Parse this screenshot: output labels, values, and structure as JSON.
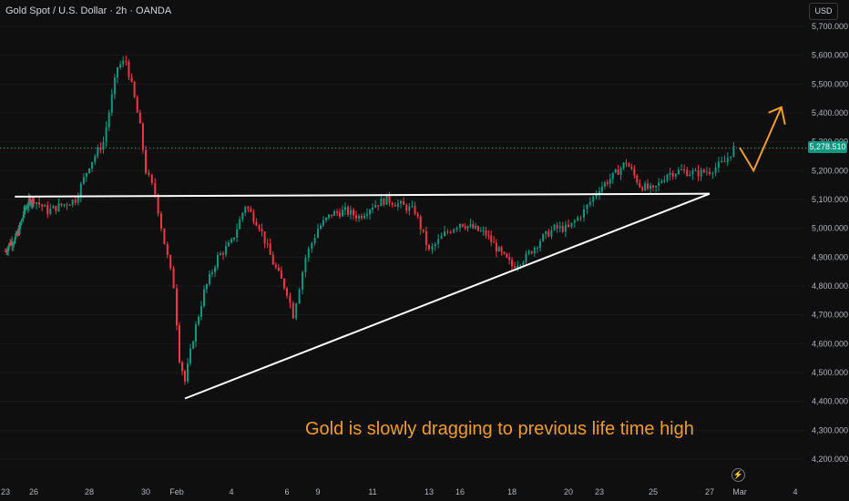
{
  "header": {
    "title": "Gold Spot / U.S. Dollar · 2h · OANDA"
  },
  "price_axis": {
    "currency": "USD",
    "last_price": "5,278.510"
  },
  "annotation": {
    "text": "Gold is slowly dragging to previous life time high"
  },
  "colors": {
    "up": "#089981",
    "down": "#f23645",
    "lines": "#ffffff",
    "arrow": "#f39c29",
    "background": "#0f0f0f"
  },
  "icons": {
    "replay": "lightning-icon"
  },
  "chart_data": {
    "type": "candlestick",
    "title": "Gold Spot / U.S. Dollar · 2h · OANDA",
    "ylim": [
      4150,
      5780
    ],
    "yticks": [
      {
        "value": 5700,
        "label": "5,700.000"
      },
      {
        "value": 5600,
        "label": "5,600.000"
      },
      {
        "value": 5500,
        "label": "5,500.000"
      },
      {
        "value": 5400,
        "label": "5,400.000"
      },
      {
        "value": 5300,
        "label": "5,300.000"
      },
      {
        "value": 5200,
        "label": "5,200.000"
      },
      {
        "value": 5100,
        "label": "5,100.000"
      },
      {
        "value": 5000,
        "label": "5,000.000"
      },
      {
        "value": 4900,
        "label": "4,900.000"
      },
      {
        "value": 4800,
        "label": "4,800.000"
      },
      {
        "value": 4700,
        "label": "4,700.000"
      },
      {
        "value": 4600,
        "label": "4,600.000"
      },
      {
        "value": 4500,
        "label": "4,500.000"
      },
      {
        "value": 4400,
        "label": "4,400.000"
      },
      {
        "value": 4300,
        "label": "4,300.000"
      },
      {
        "value": 4200,
        "label": "4,200.000"
      }
    ],
    "xticks": [
      {
        "pos": 0,
        "label": "23"
      },
      {
        "pos": 3,
        "label": "26"
      },
      {
        "pos": 5,
        "label": "28"
      },
      {
        "pos": 7,
        "label": "30"
      },
      {
        "pos": 8,
        "label": "Feb"
      },
      {
        "pos": 10,
        "label": "4"
      },
      {
        "pos": 12,
        "label": "6"
      },
      {
        "pos": 13,
        "label": "9"
      },
      {
        "pos": 15,
        "label": "11"
      },
      {
        "pos": 17,
        "label": "13"
      },
      {
        "pos": 18,
        "label": "16"
      },
      {
        "pos": 20,
        "label": "18"
      },
      {
        "pos": 22,
        "label": "20"
      },
      {
        "pos": 23,
        "label": "23"
      },
      {
        "pos": 25,
        "label": "25"
      },
      {
        "pos": 27,
        "label": "27"
      },
      {
        "pos": 28,
        "label": "Mar"
      },
      {
        "pos": 30,
        "label": "4"
      }
    ],
    "path": [
      [
        0,
        4920
      ],
      [
        0.5,
        4950
      ],
      [
        1,
        4960
      ],
      [
        1.5,
        5000
      ],
      [
        2,
        5060
      ],
      [
        2.5,
        5090
      ],
      [
        3,
        5100
      ],
      [
        3.5,
        5060
      ],
      [
        4,
        5080
      ],
      [
        4.5,
        5100
      ],
      [
        5,
        5220
      ],
      [
        5.5,
        5300
      ],
      [
        6,
        5560
      ],
      [
        6.3,
        5580
      ],
      [
        6.6,
        5450
      ],
      [
        6.8,
        5350
      ],
      [
        7,
        5200
      ],
      [
        7.3,
        5120
      ],
      [
        7.6,
        4950
      ],
      [
        7.9,
        4800
      ],
      [
        8.1,
        4550
      ],
      [
        8.3,
        4470
      ],
      [
        8.6,
        4620
      ],
      [
        9,
        4780
      ],
      [
        9.5,
        4900
      ],
      [
        10,
        4950
      ],
      [
        10.5,
        5080
      ],
      [
        11,
        5010
      ],
      [
        11.5,
        4880
      ],
      [
        12,
        4780
      ],
      [
        12.2,
        4700
      ],
      [
        12.6,
        4900
      ],
      [
        13,
        5000
      ],
      [
        13.5,
        5050
      ],
      [
        14,
        5060
      ],
      [
        14.5,
        5040
      ],
      [
        15,
        5080
      ],
      [
        15.5,
        5100
      ],
      [
        16,
        5080
      ],
      [
        16.5,
        5060
      ],
      [
        17,
        4920
      ],
      [
        17.5,
        4980
      ],
      [
        18,
        5020
      ],
      [
        18.5,
        5000
      ],
      [
        19,
        4980
      ],
      [
        19.5,
        4920
      ],
      [
        20,
        4870
      ],
      [
        20.5,
        4900
      ],
      [
        21,
        4960
      ],
      [
        21.5,
        5000
      ],
      [
        22,
        5000
      ],
      [
        22.5,
        5060
      ],
      [
        23,
        5140
      ],
      [
        23.5,
        5180
      ],
      [
        24,
        5230
      ],
      [
        24.5,
        5150
      ],
      [
        25,
        5130
      ],
      [
        25.5,
        5190
      ],
      [
        26,
        5200
      ],
      [
        26.5,
        5190
      ],
      [
        27,
        5200
      ],
      [
        27.5,
        5230
      ],
      [
        27.8,
        5278
      ]
    ],
    "last_price": 5278.51,
    "lines": [
      {
        "name": "horizontal-resistance",
        "from": [
          1,
          5110
        ],
        "to": [
          27,
          5120
        ]
      },
      {
        "name": "ascending-support",
        "from": [
          8.3,
          4410
        ],
        "to": [
          27,
          5120
        ]
      }
    ],
    "projection": {
      "points": [
        [
          28.0,
          5280
        ],
        [
          28.5,
          5200
        ],
        [
          29.5,
          5420
        ]
      ]
    }
  }
}
